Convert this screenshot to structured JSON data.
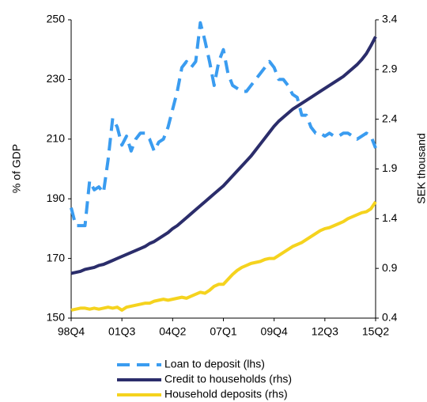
{
  "chart_data": {
    "type": "line",
    "categories": [
      "98Q4",
      null,
      null,
      null,
      null,
      null,
      null,
      null,
      null,
      null,
      null,
      "01Q3",
      null,
      null,
      null,
      null,
      null,
      null,
      null,
      null,
      null,
      null,
      "04Q2",
      null,
      null,
      null,
      null,
      null,
      null,
      null,
      null,
      null,
      null,
      "07Q1",
      null,
      null,
      null,
      null,
      null,
      null,
      null,
      null,
      null,
      null,
      "09Q4",
      null,
      null,
      null,
      null,
      null,
      null,
      null,
      null,
      null,
      null,
      "12Q3",
      null,
      null,
      null,
      null,
      null,
      null,
      null,
      null,
      null,
      null,
      "15Q2"
    ],
    "ylabel": "% of GDP",
    "y2label": "SEK thousand",
    "ylim": [
      150,
      250
    ],
    "yticks": [
      150,
      170,
      190,
      210,
      230,
      250
    ],
    "y2lim": [
      0.4,
      3.4
    ],
    "y2ticks": [
      0.4,
      0.9,
      1.4,
      1.9,
      2.4,
      2.9,
      3.4
    ],
    "grid": false,
    "legend": "bottom",
    "series": [
      {
        "name": "Loan to deposit (lhs)",
        "color": "#3a9cf0",
        "dashed": true,
        "axis": "y",
        "values": [
          187,
          181,
          181,
          181,
          196,
          193,
          194,
          192,
          203,
          217,
          214,
          208,
          211,
          206,
          210,
          212,
          212,
          210,
          206,
          209,
          210,
          214,
          220,
          226,
          234,
          236,
          234,
          236,
          249,
          243,
          236,
          228,
          236,
          240,
          232,
          228,
          227,
          226,
          226,
          228,
          230,
          232,
          234,
          236,
          234,
          230,
          230,
          228,
          225,
          224,
          218,
          218,
          214,
          212,
          212,
          211,
          212,
          211,
          211,
          212,
          212,
          211,
          210,
          211,
          212,
          211,
          207
        ]
      },
      {
        "name": "Credit to households (rhs)",
        "color": "#2b2d6b",
        "dashed": false,
        "axis": "y2",
        "values": [
          0.85,
          0.86,
          0.87,
          0.89,
          0.9,
          0.91,
          0.93,
          0.94,
          0.96,
          0.98,
          1.0,
          1.02,
          1.04,
          1.06,
          1.08,
          1.1,
          1.12,
          1.15,
          1.17,
          1.2,
          1.23,
          1.26,
          1.3,
          1.33,
          1.37,
          1.41,
          1.45,
          1.49,
          1.53,
          1.57,
          1.61,
          1.65,
          1.69,
          1.73,
          1.78,
          1.83,
          1.88,
          1.93,
          1.98,
          2.03,
          2.09,
          2.15,
          2.21,
          2.27,
          2.33,
          2.38,
          2.42,
          2.46,
          2.5,
          2.53,
          2.56,
          2.59,
          2.62,
          2.65,
          2.68,
          2.71,
          2.74,
          2.77,
          2.8,
          2.83,
          2.87,
          2.91,
          2.95,
          3.0,
          3.06,
          3.14,
          3.23
        ]
      },
      {
        "name": "Household deposits (rhs)",
        "color": "#f5d31e",
        "dashed": false,
        "axis": "y2",
        "values": [
          0.48,
          0.49,
          0.5,
          0.5,
          0.49,
          0.5,
          0.49,
          0.5,
          0.51,
          0.5,
          0.51,
          0.48,
          0.51,
          0.52,
          0.53,
          0.54,
          0.55,
          0.55,
          0.57,
          0.58,
          0.59,
          0.58,
          0.59,
          0.6,
          0.61,
          0.6,
          0.62,
          0.64,
          0.66,
          0.65,
          0.68,
          0.72,
          0.74,
          0.74,
          0.79,
          0.84,
          0.88,
          0.91,
          0.93,
          0.95,
          0.96,
          0.97,
          0.99,
          1.0,
          1.0,
          1.03,
          1.06,
          1.09,
          1.12,
          1.14,
          1.16,
          1.19,
          1.22,
          1.25,
          1.28,
          1.3,
          1.31,
          1.33,
          1.35,
          1.37,
          1.4,
          1.42,
          1.44,
          1.46,
          1.47,
          1.5,
          1.57
        ]
      }
    ]
  }
}
